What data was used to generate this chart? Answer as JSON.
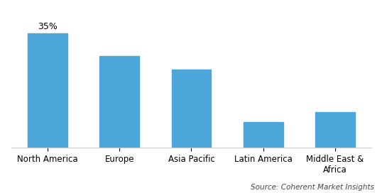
{
  "categories": [
    "North America",
    "Europe",
    "Asia Pacific",
    "Latin America",
    "Middle East &\nAfrica"
  ],
  "values": [
    35,
    28,
    24,
    8,
    11
  ],
  "bar_color": "#4da6d9",
  "annotation_label": "35%",
  "annotation_bar_index": 0,
  "source_text": "Source: Coherent Market Insights",
  "ylim": [
    0,
    42
  ],
  "bar_width": 0.55,
  "background_color": "#ffffff",
  "border_color": "#cccccc",
  "tick_fontsize": 8.5,
  "annotation_fontsize": 9
}
